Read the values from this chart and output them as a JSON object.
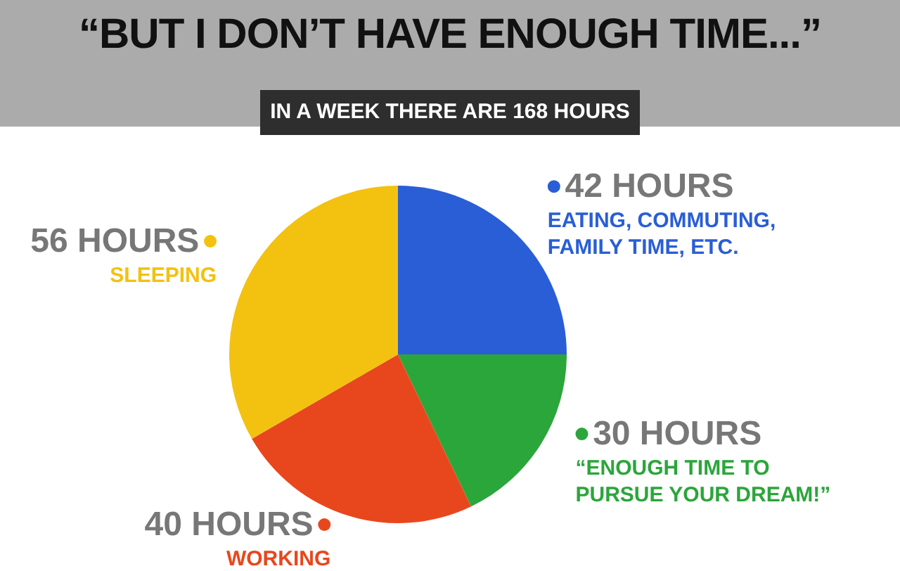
{
  "chart_data": {
    "type": "pie",
    "title": "“BUT I DON’T HAVE ENOUGH TIME...”",
    "subtitle": "IN A WEEK THERE ARE 168 HOURS",
    "categories": [
      "EATING, COMMUTING, FAMILY TIME, ETC.",
      "“ENOUGH TIME TO PURSUE YOUR DREAM!”",
      "WORKING",
      "SLEEPING"
    ],
    "values": [
      42,
      30,
      40,
      56
    ],
    "value_labels": [
      "42 HOURS",
      "30 HOURS",
      "40 HOURS",
      "56 HOURS"
    ],
    "colors": [
      "#2a5ed6",
      "#2ba63b",
      "#e8471d",
      "#f3c10f"
    ],
    "legend": "right"
  }
}
